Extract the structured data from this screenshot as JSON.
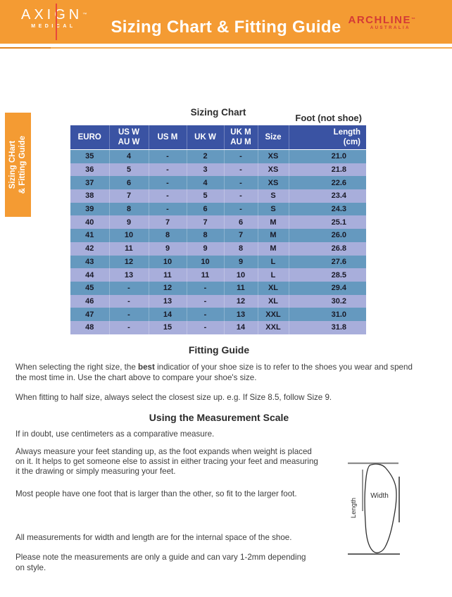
{
  "colors": {
    "banner_orange": "#F49B33",
    "logo_red": "#E8483C",
    "archline_red": "#D43A36",
    "table_header_blue": "#3A53A3",
    "row_blue": "#6599BF",
    "row_lavender": "#A8AEDB"
  },
  "header": {
    "axign_name": "AXIGN",
    "axign_tm": "™",
    "axign_sub": "MEDICAL",
    "title": "Sizing Chart & Fitting Guide",
    "archline_name": "ARCHLINE",
    "archline_tm": "™",
    "archline_sub": "AUSTRALIA"
  },
  "side_tab": {
    "line1": "Sizing CHart",
    "line2": "& Fitting Guide"
  },
  "sizing_chart": {
    "title": "Sizing Chart",
    "foot_label": "Foot (not shoe)",
    "columns": [
      {
        "line1": "EURO"
      },
      {
        "line1": "US W",
        "line2": "AU W"
      },
      {
        "line1": "US M"
      },
      {
        "line1": "UK W"
      },
      {
        "line1": "UK M",
        "line2": "AU M"
      },
      {
        "line1": "Size"
      },
      {
        "line1": "Length",
        "line2": "(cm)"
      }
    ],
    "rows": [
      [
        "35",
        "4",
        "-",
        "2",
        "-",
        "XS",
        "21.0"
      ],
      [
        "36",
        "5",
        "-",
        "3",
        "-",
        "XS",
        "21.8"
      ],
      [
        "37",
        "6",
        "-",
        "4",
        "-",
        "XS",
        "22.6"
      ],
      [
        "38",
        "7",
        "-",
        "5",
        "-",
        "S",
        "23.4"
      ],
      [
        "39",
        "8",
        "-",
        "6",
        "-",
        "S",
        "24.3"
      ],
      [
        "40",
        "9",
        "7",
        "7",
        "6",
        "M",
        "25.1"
      ],
      [
        "41",
        "10",
        "8",
        "8",
        "7",
        "M",
        "26.0"
      ],
      [
        "42",
        "11",
        "9",
        "9",
        "8",
        "M",
        "26.8"
      ],
      [
        "43",
        "12",
        "10",
        "10",
        "9",
        "L",
        "27.6"
      ],
      [
        "44",
        "13",
        "11",
        "11",
        "10",
        "L",
        "28.5"
      ],
      [
        "45",
        "-",
        "12",
        "-",
        "11",
        "XL",
        "29.4"
      ],
      [
        "46",
        "-",
        "13",
        "-",
        "12",
        "XL",
        "30.2"
      ],
      [
        "47",
        "-",
        "14",
        "-",
        "13",
        "XXL",
        "31.0"
      ],
      [
        "48",
        "-",
        "15",
        "-",
        "14",
        "XXL",
        "31.8"
      ]
    ]
  },
  "fitting_guide": {
    "title": "Fitting Guide",
    "p1_before": "When selecting the right size, the ",
    "p1_bold": "best",
    "p1_after": " indicatior of your shoe size is to refer to the shoes you wear and spend\nthe most time in. Use the chart above to compare your shoe's size.",
    "p2": "When fitting to half size, always select the closest size up. e.g. If Size 8.5, follow Size 9."
  },
  "measurement": {
    "title": "Using the Measurement Scale",
    "p1": "If in doubt, use centimeters as a comparative measure.",
    "p2": "Always measure your feet standing up, as the foot expands when weight is placed\non it. It helps to get someone else to assist in either tracing your feet and measuring\nit the drawing or simply measuring your feet.",
    "p3": "Most people have one foot that is larger than the other, so fit to the larger foot.",
    "p4": "All measurements for width and length are for the internal space of the shoe.",
    "p5": "Please note the measurements are only a guide and can vary 1-2mm depending\non style."
  },
  "diagram": {
    "width_label": "Width",
    "length_label": "Length"
  }
}
